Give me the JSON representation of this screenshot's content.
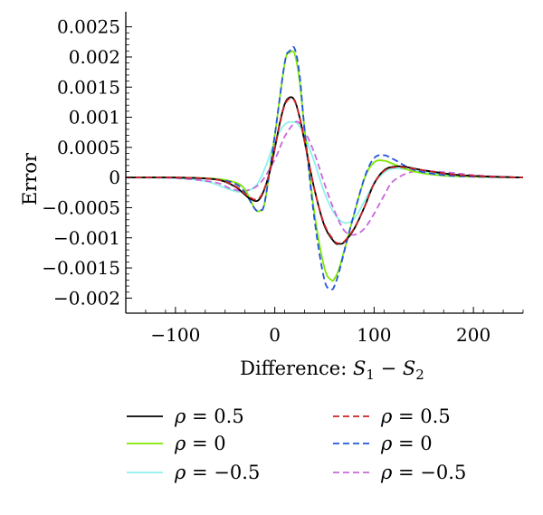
{
  "chart_data": {
    "type": "line",
    "xlabel": "Difference: S₁ − S₂",
    "ylabel": "Error",
    "xlim": [
      -150,
      250
    ],
    "ylim": [
      -0.00225,
      0.00275
    ],
    "x_ticks": [
      -100,
      0,
      100,
      200
    ],
    "x_tick_labels": [
      "−100",
      "0",
      "100",
      "200"
    ],
    "y_ticks": [
      -0.002,
      -0.0015,
      -0.001,
      -0.0005,
      0,
      0.0005,
      0.001,
      0.0015,
      0.002,
      0.0025
    ],
    "y_tick_labels": [
      "−0.002",
      "−0.0015",
      "−0.001",
      "−0.0005",
      "0",
      "0.0005",
      "0.001",
      "0.0015",
      "0.002",
      "0.0025"
    ],
    "grid": false,
    "legend_position": "bottom",
    "series": [
      {
        "name": "ρ = 0.5",
        "color": "#000000",
        "dash": "solid",
        "x": [
          -150,
          -100,
          -60,
          -40,
          -25,
          -15,
          -5,
          5,
          10,
          15,
          20,
          25,
          30,
          40,
          50,
          60,
          65,
          70,
          80,
          90,
          100,
          110,
          120,
          130,
          150,
          180,
          210,
          250
        ],
        "y": [
          0,
          0,
          -3e-05,
          -0.00015,
          -0.00035,
          -0.00035,
          0.0001,
          0.0009,
          0.00122,
          0.00133,
          0.00128,
          0.001,
          0.0006,
          -0.0002,
          -0.0008,
          -0.00107,
          -0.0011,
          -0.00107,
          -0.00085,
          -0.0005,
          -0.0001,
          0.00012,
          0.00018,
          0.00018,
          0.00012,
          5e-05,
          2e-05,
          0
        ]
      },
      {
        "name": "ρ = 0",
        "color": "#7fe600",
        "dash": "solid",
        "x": [
          -150,
          -100,
          -60,
          -40,
          -30,
          -20,
          -15,
          -10,
          0,
          10,
          15,
          20,
          25,
          30,
          40,
          50,
          57,
          60,
          65,
          75,
          90,
          100,
          110,
          120,
          140,
          170,
          210,
          250
        ],
        "y": [
          0,
          0,
          -2e-05,
          -8e-05,
          -0.0002,
          -0.00052,
          -0.00055,
          -0.0004,
          0.0007,
          0.0019,
          0.00207,
          0.00205,
          0.0016,
          0.0008,
          -0.0006,
          -0.0015,
          -0.0017,
          -0.00168,
          -0.0015,
          -0.0009,
          -3e-05,
          0.00025,
          0.00028,
          0.00022,
          0.0001,
          3e-05,
          1e-05,
          0
        ]
      },
      {
        "name": "ρ = −0.5",
        "color": "#8ef2ea",
        "dash": "solid",
        "x": [
          -150,
          -100,
          -70,
          -50,
          -35,
          -20,
          -10,
          0,
          10,
          20,
          25,
          30,
          40,
          50,
          60,
          70,
          80,
          90,
          100,
          110,
          120,
          140,
          170,
          210,
          250
        ],
        "y": [
          0,
          -1e-05,
          -6e-05,
          -0.00017,
          -0.00024,
          -0.00015,
          0.00015,
          0.0006,
          0.00088,
          0.00092,
          0.00085,
          0.0007,
          0.00025,
          -0.00025,
          -0.0006,
          -0.00075,
          -0.00068,
          -0.0004,
          -0.0001,
          8e-05,
          0.00015,
          0.00012,
          5e-05,
          1e-05,
          0
        ]
      },
      {
        "name": "ρ = 0.5",
        "color": "#cc2222",
        "dash": "dashed",
        "x": [
          -150,
          -100,
          -60,
          -40,
          -25,
          -15,
          -5,
          5,
          10,
          15,
          20,
          25,
          30,
          40,
          50,
          60,
          65,
          70,
          80,
          90,
          100,
          110,
          120,
          130,
          150,
          180,
          210,
          250
        ],
        "y": [
          0,
          0,
          -3e-05,
          -0.00014,
          -0.00033,
          -0.00033,
          0.0001,
          0.00088,
          0.0012,
          0.00131,
          0.00127,
          0.001,
          0.0006,
          -0.0002,
          -0.00078,
          -0.00105,
          -0.00109,
          -0.00106,
          -0.00084,
          -0.0005,
          -0.0001,
          0.00011,
          0.00017,
          0.00017,
          0.00012,
          5e-05,
          2e-05,
          0
        ]
      },
      {
        "name": "ρ = 0",
        "color": "#2255dd",
        "dash": "dashed",
        "x": [
          -150,
          -100,
          -60,
          -40,
          -30,
          -20,
          -15,
          -10,
          0,
          10,
          15,
          20,
          25,
          30,
          40,
          50,
          57,
          60,
          65,
          75,
          90,
          100,
          110,
          120,
          140,
          170,
          210,
          250
        ],
        "y": [
          0,
          0,
          -3e-05,
          -0.0001,
          -0.00025,
          -0.00052,
          -0.00054,
          -0.0004,
          0.0007,
          0.0019,
          0.0021,
          0.00214,
          0.0017,
          0.0008,
          -0.0007,
          -0.0017,
          -0.00185,
          -0.0018,
          -0.00155,
          -0.0009,
          -2e-05,
          0.00032,
          0.00037,
          0.0003,
          0.00013,
          4e-05,
          1e-05,
          0
        ]
      },
      {
        "name": "ρ = −0.5",
        "color": "#cc66dd",
        "dash": "dashed",
        "x": [
          -150,
          -100,
          -60,
          -45,
          -30,
          -15,
          0,
          10,
          20,
          25,
          30,
          40,
          50,
          60,
          70,
          80,
          90,
          100,
          110,
          120,
          140,
          170,
          200,
          230,
          250
        ],
        "y": [
          0,
          -1e-05,
          -8e-05,
          -0.00018,
          -0.00022,
          -0.0001,
          0.0003,
          0.00068,
          0.00091,
          0.0009,
          0.00078,
          0.0004,
          -0.0001,
          -0.00055,
          -0.00088,
          -0.00095,
          -0.00085,
          -0.0006,
          -0.0003,
          -5e-05,
          0.0001,
          9e-05,
          4e-05,
          1e-05,
          0
        ]
      }
    ]
  }
}
